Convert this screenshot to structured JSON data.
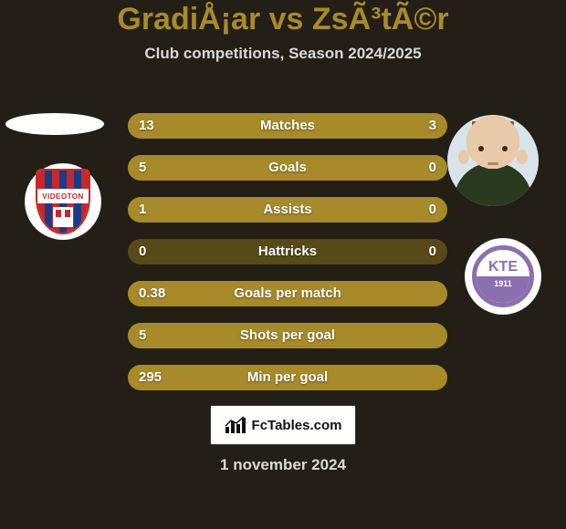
{
  "background_color": "#231e16",
  "title": {
    "text": "GradiÅ¡ar vs ZsÃ³tÃ©r",
    "color": "#a78a2a",
    "fontsize": 34,
    "weight": 800
  },
  "subtitle": {
    "text": "Club competitions, Season 2024/2025",
    "color": "#d9d9d9",
    "fontsize": 17
  },
  "watermark": {
    "text": "FcTables.com",
    "fontsize": 15
  },
  "footer_date": {
    "text": "1 november 2024",
    "color": "#d9d9d9",
    "fontsize": 17
  },
  "badges": {
    "left_label": "VIDEOTON",
    "kte_top": "KTE",
    "kte_year": "1911"
  },
  "chart": {
    "type": "bar-comparison",
    "bar_color": "#a78a2a",
    "track_color": "#574a18",
    "label_fontsize": 15,
    "value_fontsize": 15,
    "rows": [
      {
        "label": "Matches",
        "left_text": "13",
        "right_text": "3",
        "left_pct": 81,
        "right_pct": 19
      },
      {
        "label": "Goals",
        "left_text": "5",
        "right_text": "0",
        "left_pct": 100,
        "right_pct": 0
      },
      {
        "label": "Assists",
        "left_text": "1",
        "right_text": "0",
        "left_pct": 100,
        "right_pct": 0
      },
      {
        "label": "Hattricks",
        "left_text": "0",
        "right_text": "0",
        "left_pct": 0,
        "right_pct": 0
      },
      {
        "label": "Goals per match",
        "left_text": "0.38",
        "right_text": "",
        "left_pct": 100,
        "right_pct": 0
      },
      {
        "label": "Shots per goal",
        "left_text": "5",
        "right_text": "",
        "left_pct": 100,
        "right_pct": 0
      },
      {
        "label": "Min per goal",
        "left_text": "295",
        "right_text": "",
        "left_pct": 100,
        "right_pct": 0
      }
    ]
  }
}
